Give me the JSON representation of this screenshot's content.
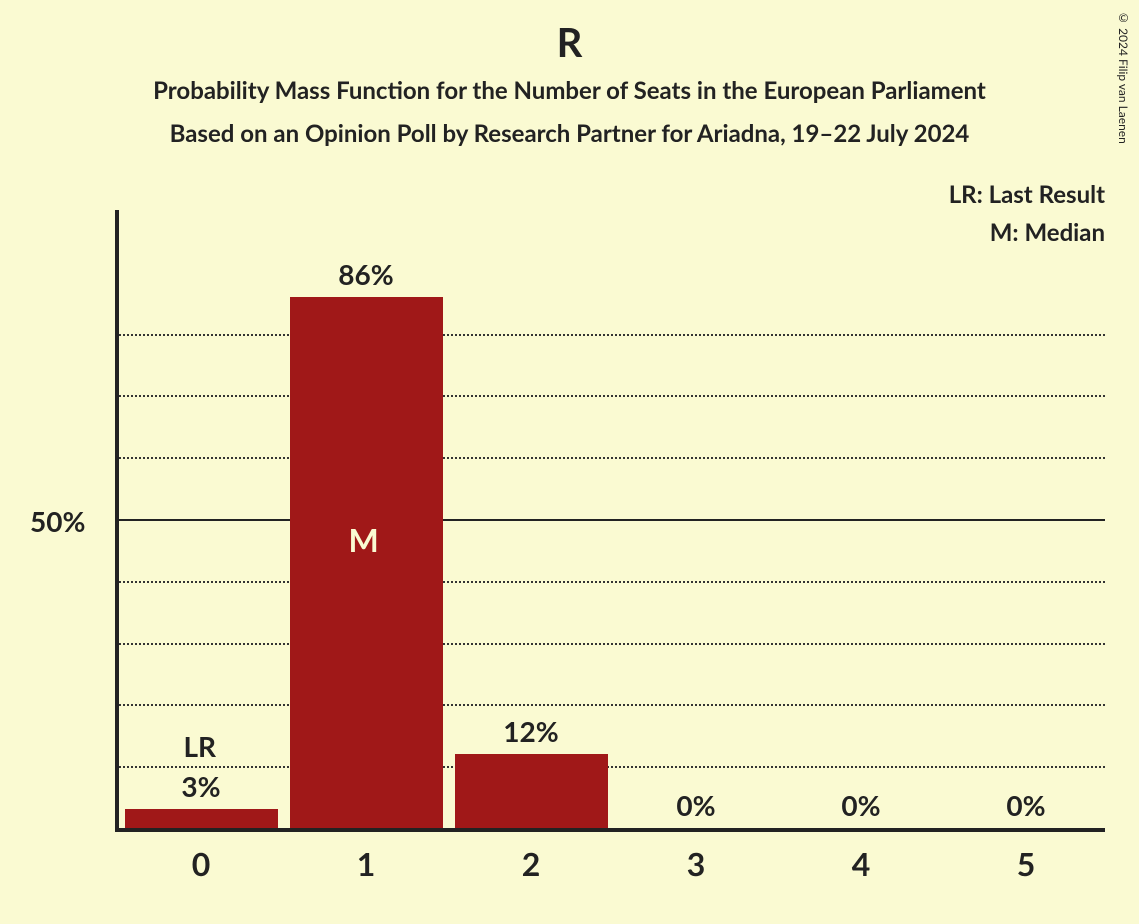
{
  "title": "R",
  "subtitle1": "Probability Mass Function for the Number of Seats in the European Parliament",
  "subtitle2": "Based on an Opinion Poll by Research Partner for Ariadna, 19–22 July 2024",
  "copyright": "© 2024 Filip van Laenen",
  "chart": {
    "type": "bar",
    "background_color": "#fafad2",
    "bar_color": "#a01818",
    "axis_color": "#222222",
    "grid_color": "#333333",
    "text_color": "#222222",
    "median_text_color": "#fafad2",
    "categories": [
      "0",
      "1",
      "2",
      "3",
      "4",
      "5"
    ],
    "values": [
      3,
      86,
      12,
      0,
      0,
      0
    ],
    "value_labels": [
      "3%",
      "86%",
      "12%",
      "0%",
      "0%",
      "0%"
    ],
    "median_index": 1,
    "median_label": "M",
    "lr_index": 0,
    "lr_label": "LR",
    "ylim": [
      0,
      100
    ],
    "ytick_major": 50,
    "ytick_minor": 10,
    "ytick_label": "50%",
    "bar_width": 0.93,
    "title_fontsize": 40,
    "subtitle_fontsize": 24,
    "label_fontsize": 28,
    "xtick_fontsize": 32
  },
  "legend": {
    "lr": "LR: Last Result",
    "m": "M: Median"
  }
}
